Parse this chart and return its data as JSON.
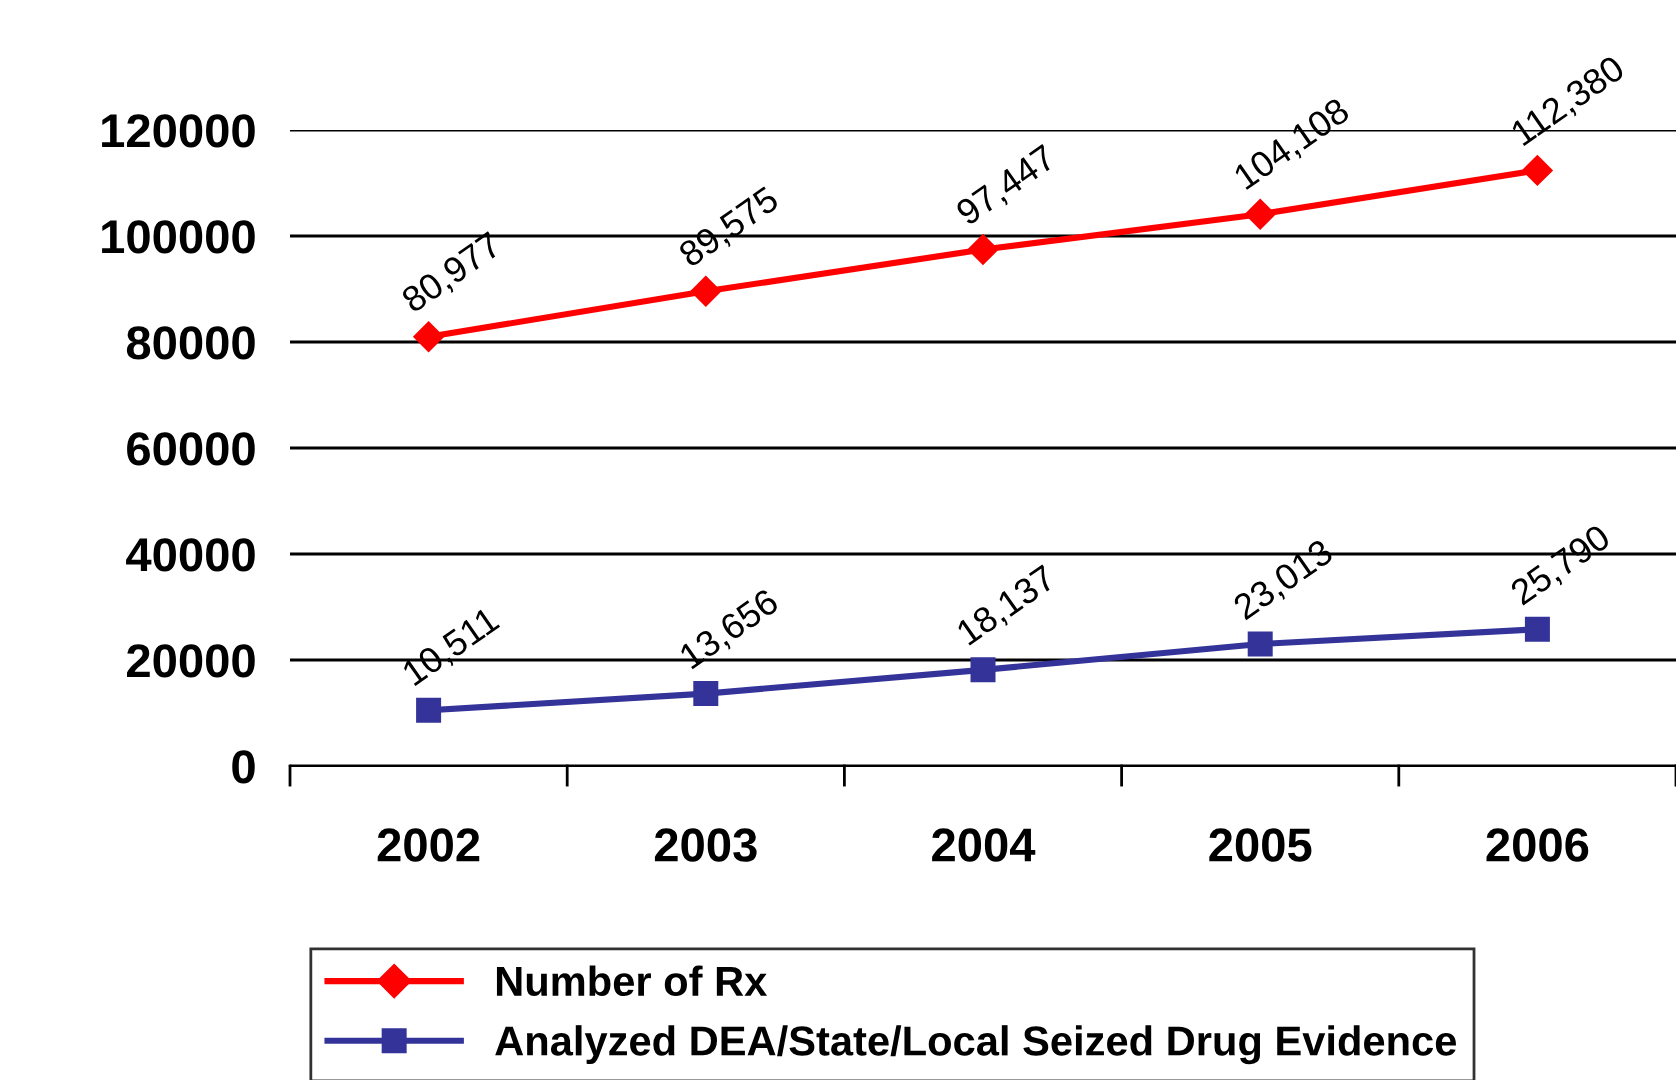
{
  "chart_data": {
    "type": "line",
    "categories": [
      "2002",
      "2003",
      "2004",
      "2005",
      "2006"
    ],
    "series": [
      {
        "name": "Number of Rx",
        "color": "#ff0000",
        "marker": "diamond",
        "values": [
          80977,
          89575,
          97447,
          104108,
          112380
        ],
        "value_labels": [
          "80,977",
          "89,575",
          "97,447",
          "104,108",
          "112,380"
        ]
      },
      {
        "name": "Analyzed DEA/State/Local Seized Drug Evidence",
        "color": "#333399",
        "marker": "square",
        "values": [
          10511,
          13656,
          18137,
          23013,
          25790
        ],
        "value_labels": [
          "10,511",
          "13,656",
          "18,137",
          "23,013",
          "25,790"
        ]
      }
    ],
    "ylim": [
      0,
      120000
    ],
    "yticks": [
      0,
      20000,
      40000,
      60000,
      80000,
      100000,
      120000
    ],
    "grid": "y",
    "legend": "bottom",
    "line_style": "solid"
  }
}
